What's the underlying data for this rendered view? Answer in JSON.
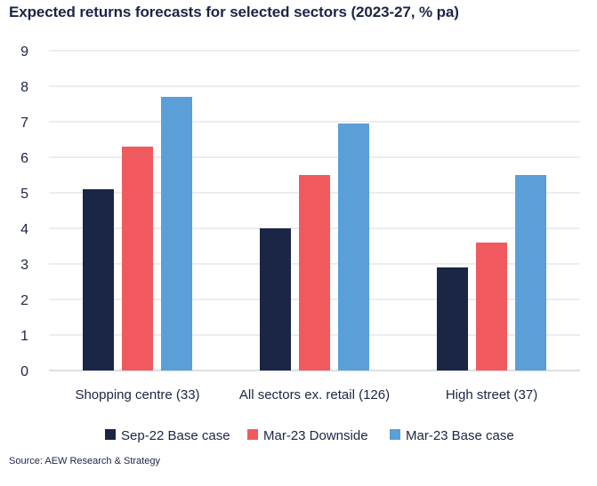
{
  "chart_data": {
    "type": "bar",
    "title": "Expected returns forecasts for selected sectors (2023-27, % pa)",
    "source": "Source: AEW Research & Strategy",
    "categories": [
      "Shopping centre (33)",
      "All sectors ex. retail (126)",
      "High street (37)"
    ],
    "series": [
      {
        "name": "Sep-22 Base case",
        "values": [
          5.1,
          4.0,
          2.9
        ],
        "color": "#1b2546"
      },
      {
        "name": "Mar-23 Downside",
        "values": [
          6.3,
          5.5,
          3.6
        ],
        "color": "#f05a5f"
      },
      {
        "name": "Mar-23 Base case",
        "values": [
          7.7,
          6.95,
          5.5
        ],
        "color": "#5b9fd8"
      }
    ],
    "yticks": [
      0,
      1,
      2,
      3,
      4,
      5,
      6,
      7,
      8,
      9
    ],
    "ylim": [
      0,
      9
    ],
    "grid": true,
    "legend_position": "bottom"
  }
}
